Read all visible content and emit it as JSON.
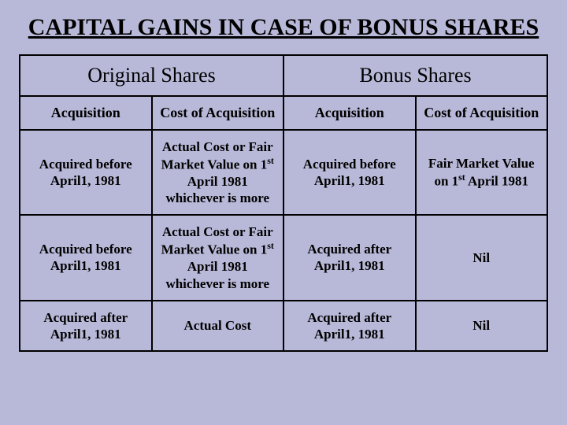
{
  "title": "CAPITAL GAINS IN CASE OF BONUS SHARES",
  "background_color": "#b8b8d8",
  "border_color": "#000000",
  "text_color": "#000000",
  "title_fontsize": 30,
  "group_header_fontsize": 26,
  "col_header_fontsize": 18,
  "cell_fontsize": 17,
  "group_headers": [
    "Original Shares",
    "Bonus Shares"
  ],
  "columns": [
    "Acquisition",
    "Cost of Acquisition",
    "Acquisition",
    "Cost of Acquisition"
  ],
  "rows": [
    [
      "Acquired before April1, 1981",
      "Actual Cost or Fair Market Value on 1st April 1981 whichever is more",
      "Acquired before April1, 1981",
      "Fair Market Value on 1st April 1981"
    ],
    [
      "Acquired before April1, 1981",
      "Actual Cost or Fair Market Value on 1st April 1981 whichever is more",
      "Acquired after April1, 1981",
      "Nil"
    ],
    [
      "Acquired after April1, 1981",
      "Actual Cost",
      "Acquired after April1, 1981",
      "Nil"
    ]
  ]
}
